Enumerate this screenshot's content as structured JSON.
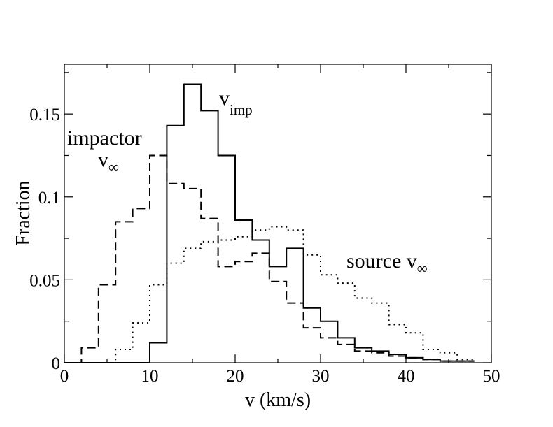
{
  "chart_data": {
    "type": "histogram-step",
    "title": "",
    "xlabel": "v (km/s)",
    "ylabel": "Fraction",
    "xlim": [
      0,
      50
    ],
    "ylim": [
      0,
      0.18
    ],
    "x_ticks": [
      0,
      10,
      20,
      30,
      40,
      50
    ],
    "x_tick_labels": [
      "0",
      "10",
      "20",
      "30",
      "40",
      "50"
    ],
    "y_ticks": [
      0,
      0.05,
      0.1,
      0.15
    ],
    "y_tick_labels": [
      "0",
      "0.05",
      "0.1",
      "0.15"
    ],
    "grid": false,
    "bin_edges": [
      0,
      2,
      4,
      6,
      8,
      10,
      12,
      14,
      16,
      18,
      20,
      22,
      24,
      26,
      28,
      30,
      32,
      34,
      36,
      38,
      40,
      42,
      44,
      46,
      48
    ],
    "series": [
      {
        "name": "v_imp",
        "style": "solid",
        "values": [
          0,
          0,
          0,
          0,
          0,
          0.012,
          0.143,
          0.168,
          0.152,
          0.125,
          0.086,
          0.074,
          0.058,
          0.069,
          0.033,
          0.025,
          0.015,
          0.009,
          0.007,
          0.005,
          0.003,
          0.002,
          0.001,
          0.001
        ]
      },
      {
        "name": "impactor v_inf",
        "style": "dashed",
        "values": [
          0,
          0.009,
          0.047,
          0.085,
          0.093,
          0.125,
          0.108,
          0.105,
          0.087,
          0.058,
          0.061,
          0.066,
          0.049,
          0.036,
          0.021,
          0.015,
          0.011,
          0.007,
          0.006,
          0.004,
          0.003,
          0.002,
          0.001,
          0.001
        ]
      },
      {
        "name": "source v_inf",
        "style": "dotted",
        "values": [
          0,
          0,
          0,
          0.008,
          0.024,
          0.047,
          0.06,
          0.069,
          0.073,
          0.074,
          0.076,
          0.08,
          0.082,
          0.08,
          0.065,
          0.053,
          0.048,
          0.039,
          0.036,
          0.023,
          0.018,
          0.008,
          0.006,
          0.002
        ]
      }
    ],
    "annotations": [
      {
        "id": "vimp",
        "main": "v",
        "sub": "imp"
      },
      {
        "id": "impactor-line1",
        "text": "impactor"
      },
      {
        "id": "impactor-line2",
        "main": "v",
        "sub": "∞"
      },
      {
        "id": "source",
        "main": "source v",
        "sub": "∞"
      }
    ]
  }
}
